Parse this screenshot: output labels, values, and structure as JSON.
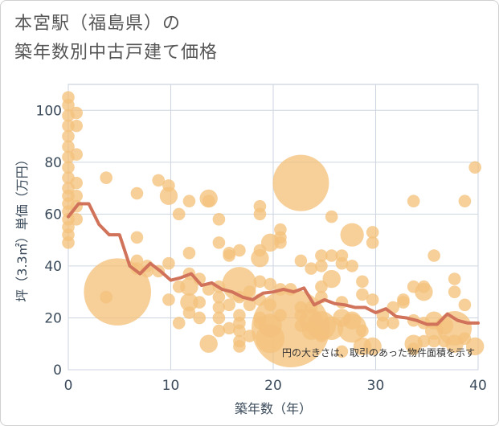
{
  "title_line1": "本宮駅（福島県）の",
  "title_line2": "築年数別中古戸建て価格",
  "chart_data": {
    "type": "scatter",
    "title": "本宮駅（福島県）の築年数別中古戸建て価格",
    "xlabel": "築年数（年）",
    "ylabel": "坪（3.3㎡）単価（万円）",
    "xlim": [
      0,
      40
    ],
    "ylim": [
      0,
      110
    ],
    "xticks": [
      "0",
      "10",
      "20",
      "30",
      "40"
    ],
    "yticks": [
      "0",
      "20",
      "40",
      "60",
      "80",
      "100"
    ],
    "grid": true,
    "note": "円の大きさは、取引のあった物件面積を示す",
    "colors": {
      "bubble": "#f3c27c",
      "line": "#d0735a",
      "grid": "#cdd6e0"
    },
    "bubbles": [
      {
        "x": 0,
        "y": 105,
        "s": 2
      },
      {
        "x": 0,
        "y": 102,
        "s": 2
      },
      {
        "x": 0,
        "y": 98,
        "s": 2
      },
      {
        "x": 0,
        "y": 94,
        "s": 2
      },
      {
        "x": 0,
        "y": 90,
        "s": 2
      },
      {
        "x": 0,
        "y": 86,
        "s": 2
      },
      {
        "x": 0,
        "y": 82,
        "s": 2
      },
      {
        "x": 0,
        "y": 78,
        "s": 2
      },
      {
        "x": 0,
        "y": 74,
        "s": 2
      },
      {
        "x": 0,
        "y": 70,
        "s": 2
      },
      {
        "x": 0,
        "y": 67,
        "s": 2
      },
      {
        "x": 0,
        "y": 64,
        "s": 2
      },
      {
        "x": 0,
        "y": 61,
        "s": 2
      },
      {
        "x": 0,
        "y": 58,
        "s": 2
      },
      {
        "x": 0,
        "y": 55,
        "s": 2
      },
      {
        "x": 0,
        "y": 52,
        "s": 2
      },
      {
        "x": 0,
        "y": 49,
        "s": 2
      },
      {
        "x": 0.8,
        "y": 99,
        "s": 2
      },
      {
        "x": 0.8,
        "y": 94,
        "s": 2
      },
      {
        "x": 0.8,
        "y": 83,
        "s": 2
      },
      {
        "x": 0.8,
        "y": 72,
        "s": 2
      },
      {
        "x": 0.8,
        "y": 67,
        "s": 2
      },
      {
        "x": 0.8,
        "y": 63,
        "s": 2
      },
      {
        "x": 0.8,
        "y": 58,
        "s": 2
      },
      {
        "x": 3.7,
        "y": 74,
        "s": 2
      },
      {
        "x": 3.7,
        "y": 28,
        "s": 2
      },
      {
        "x": 4.8,
        "y": 30,
        "s": 12
      },
      {
        "x": 6.7,
        "y": 68,
        "s": 2
      },
      {
        "x": 6.7,
        "y": 51,
        "s": 2
      },
      {
        "x": 6.7,
        "y": 42,
        "s": 2
      },
      {
        "x": 6.7,
        "y": 39,
        "s": 2
      },
      {
        "x": 7.7,
        "y": 40,
        "s": 2
      },
      {
        "x": 7.7,
        "y": 38,
        "s": 2
      },
      {
        "x": 8.8,
        "y": 73,
        "s": 2
      },
      {
        "x": 8.8,
        "y": 38,
        "s": 2
      },
      {
        "x": 9.8,
        "y": 71,
        "s": 2
      },
      {
        "x": 9.8,
        "y": 67,
        "s": 3
      },
      {
        "x": 9.8,
        "y": 41,
        "s": 2
      },
      {
        "x": 9.8,
        "y": 27,
        "s": 2
      },
      {
        "x": 10.8,
        "y": 60,
        "s": 2
      },
      {
        "x": 10.8,
        "y": 32,
        "s": 2
      },
      {
        "x": 10.8,
        "y": 18,
        "s": 2
      },
      {
        "x": 11.8,
        "y": 65,
        "s": 2
      },
      {
        "x": 11.8,
        "y": 45,
        "s": 2
      },
      {
        "x": 11.8,
        "y": 37,
        "s": 2
      },
      {
        "x": 11.8,
        "y": 32,
        "s": 3
      },
      {
        "x": 11.8,
        "y": 26,
        "s": 3
      },
      {
        "x": 11.8,
        "y": 22,
        "s": 2
      },
      {
        "x": 12.8,
        "y": 35,
        "s": 2
      },
      {
        "x": 12.8,
        "y": 26,
        "s": 2
      },
      {
        "x": 12.8,
        "y": 20,
        "s": 2
      },
      {
        "x": 13.7,
        "y": 66,
        "s": 3
      },
      {
        "x": 13.7,
        "y": 65,
        "s": 2
      },
      {
        "x": 13.7,
        "y": 31,
        "s": 2
      },
      {
        "x": 13.7,
        "y": 10,
        "s": 3
      },
      {
        "x": 14.7,
        "y": 58,
        "s": 2
      },
      {
        "x": 14.7,
        "y": 49,
        "s": 2
      },
      {
        "x": 14.7,
        "y": 32,
        "s": 2
      },
      {
        "x": 14.7,
        "y": 28,
        "s": 2
      },
      {
        "x": 14.7,
        "y": 24,
        "s": 2
      },
      {
        "x": 14.7,
        "y": 20,
        "s": 2
      },
      {
        "x": 14.7,
        "y": 15,
        "s": 2
      },
      {
        "x": 15.7,
        "y": 45,
        "s": 2
      },
      {
        "x": 15.7,
        "y": 44,
        "s": 2
      },
      {
        "x": 15.7,
        "y": 25,
        "s": 2
      },
      {
        "x": 15.7,
        "y": 16,
        "s": 2
      },
      {
        "x": 16.7,
        "y": 46,
        "s": 2
      },
      {
        "x": 16.7,
        "y": 33,
        "s": 6
      },
      {
        "x": 16.7,
        "y": 28,
        "s": 2
      },
      {
        "x": 16.7,
        "y": 21,
        "s": 2
      },
      {
        "x": 16.7,
        "y": 18,
        "s": 2
      },
      {
        "x": 16.7,
        "y": 15,
        "s": 2
      },
      {
        "x": 16.7,
        "y": 11,
        "s": 2
      },
      {
        "x": 16.7,
        "y": 9,
        "s": 2
      },
      {
        "x": 17.7,
        "y": 30,
        "s": 2
      },
      {
        "x": 17.7,
        "y": 25,
        "s": 2
      },
      {
        "x": 17.7,
        "y": 13,
        "s": 2
      },
      {
        "x": 18.7,
        "y": 63,
        "s": 2
      },
      {
        "x": 18.7,
        "y": 60,
        "s": 2
      },
      {
        "x": 18.7,
        "y": 46,
        "s": 2
      },
      {
        "x": 18.7,
        "y": 43,
        "s": 3
      },
      {
        "x": 18.7,
        "y": 34,
        "s": 2
      },
      {
        "x": 18.7,
        "y": 27,
        "s": 2
      },
      {
        "x": 18.7,
        "y": 20,
        "s": 2
      },
      {
        "x": 18.7,
        "y": 18,
        "s": 2
      },
      {
        "x": 19.7,
        "y": 49,
        "s": 3
      },
      {
        "x": 19.7,
        "y": 33,
        "s": 2
      },
      {
        "x": 19.7,
        "y": 25,
        "s": 2
      },
      {
        "x": 19.7,
        "y": 17,
        "s": 4
      },
      {
        "x": 19.7,
        "y": 12,
        "s": 5
      },
      {
        "x": 20.7,
        "y": 54,
        "s": 2
      },
      {
        "x": 20.7,
        "y": 51,
        "s": 2
      },
      {
        "x": 20.7,
        "y": 49,
        "s": 2
      },
      {
        "x": 20.7,
        "y": 31,
        "s": 2
      },
      {
        "x": 20.7,
        "y": 21,
        "s": 2
      },
      {
        "x": 21.7,
        "y": 31,
        "s": 2
      },
      {
        "x": 21.7,
        "y": 16,
        "s": 14
      },
      {
        "x": 22.7,
        "y": 72,
        "s": 10
      },
      {
        "x": 22.7,
        "y": 42,
        "s": 2
      },
      {
        "x": 22.7,
        "y": 24,
        "s": 2
      },
      {
        "x": 22.7,
        "y": 21,
        "s": 2
      },
      {
        "x": 22.7,
        "y": 17,
        "s": 2
      },
      {
        "x": 23.7,
        "y": 39,
        "s": 2
      },
      {
        "x": 23.7,
        "y": 24,
        "s": 2
      },
      {
        "x": 23.7,
        "y": 19,
        "s": 4
      },
      {
        "x": 23.7,
        "y": 15,
        "s": 3
      },
      {
        "x": 24.7,
        "y": 44,
        "s": 2
      },
      {
        "x": 24.7,
        "y": 40,
        "s": 2
      },
      {
        "x": 24.7,
        "y": 32,
        "s": 2
      },
      {
        "x": 24.7,
        "y": 28,
        "s": 2
      },
      {
        "x": 24.7,
        "y": 17,
        "s": 5
      },
      {
        "x": 24.7,
        "y": 13,
        "s": 2
      },
      {
        "x": 25.7,
        "y": 59,
        "s": 2
      },
      {
        "x": 25.7,
        "y": 44,
        "s": 2
      },
      {
        "x": 25.7,
        "y": 35,
        "s": 3
      },
      {
        "x": 25.7,
        "y": 16,
        "s": 4
      },
      {
        "x": 26.7,
        "y": 44,
        "s": 2
      },
      {
        "x": 26.7,
        "y": 41,
        "s": 2
      },
      {
        "x": 26.7,
        "y": 26,
        "s": 2
      },
      {
        "x": 26.7,
        "y": 20,
        "s": 3
      },
      {
        "x": 26.7,
        "y": 7,
        "s": 2
      },
      {
        "x": 27.7,
        "y": 52,
        "s": 4
      },
      {
        "x": 27.7,
        "y": 40,
        "s": 2
      },
      {
        "x": 27.7,
        "y": 19,
        "s": 3
      },
      {
        "x": 27.7,
        "y": 16,
        "s": 5
      },
      {
        "x": 28.7,
        "y": 34,
        "s": 2
      },
      {
        "x": 28.7,
        "y": 29,
        "s": 2
      },
      {
        "x": 28.7,
        "y": 15,
        "s": 2
      },
      {
        "x": 28.7,
        "y": 9,
        "s": 3
      },
      {
        "x": 29.7,
        "y": 53,
        "s": 2
      },
      {
        "x": 29.7,
        "y": 49,
        "s": 2
      },
      {
        "x": 29.7,
        "y": 27,
        "s": 2
      },
      {
        "x": 29.7,
        "y": 9,
        "s": 3
      },
      {
        "x": 30.7,
        "y": 21,
        "s": 2
      },
      {
        "x": 30.7,
        "y": 18,
        "s": 2
      },
      {
        "x": 31.7,
        "y": 24,
        "s": 2
      },
      {
        "x": 31.7,
        "y": 18,
        "s": 2
      },
      {
        "x": 32.7,
        "y": 27,
        "s": 2
      },
      {
        "x": 32.7,
        "y": 26,
        "s": 2
      },
      {
        "x": 33.7,
        "y": 65,
        "s": 2
      },
      {
        "x": 33.7,
        "y": 32,
        "s": 2
      },
      {
        "x": 33.7,
        "y": 19,
        "s": 2
      },
      {
        "x": 33.7,
        "y": 10,
        "s": 3
      },
      {
        "x": 33.7,
        "y": 8,
        "s": 2
      },
      {
        "x": 34.7,
        "y": 32,
        "s": 2
      },
      {
        "x": 34.7,
        "y": 30,
        "s": 3
      },
      {
        "x": 34.7,
        "y": 18,
        "s": 2
      },
      {
        "x": 34.7,
        "y": 11,
        "s": 2
      },
      {
        "x": 35.7,
        "y": 44,
        "s": 2
      },
      {
        "x": 35.7,
        "y": 19,
        "s": 3
      },
      {
        "x": 35.7,
        "y": 15,
        "s": 3
      },
      {
        "x": 35.7,
        "y": 11,
        "s": 2
      },
      {
        "x": 36.7,
        "y": 17,
        "s": 3
      },
      {
        "x": 36.7,
        "y": 11,
        "s": 2
      },
      {
        "x": 37.7,
        "y": 35,
        "s": 2
      },
      {
        "x": 37.7,
        "y": 30,
        "s": 2
      },
      {
        "x": 37.7,
        "y": 16,
        "s": 6
      },
      {
        "x": 37.7,
        "y": 10,
        "s": 3
      },
      {
        "x": 38.7,
        "y": 65,
        "s": 2
      },
      {
        "x": 38.7,
        "y": 25,
        "s": 2
      },
      {
        "x": 38.7,
        "y": 12,
        "s": 2
      },
      {
        "x": 39.7,
        "y": 78,
        "s": 2
      },
      {
        "x": 39.7,
        "y": 9,
        "s": 3
      }
    ],
    "line": {
      "x": [
        0,
        1,
        2,
        3,
        4,
        5,
        6,
        7,
        8,
        9,
        10,
        11,
        12,
        13,
        14,
        15,
        16,
        17,
        18,
        19,
        20,
        21,
        22,
        23,
        24,
        25,
        26,
        27,
        28,
        29,
        30,
        31,
        32,
        33,
        34,
        35,
        36,
        37,
        38,
        39,
        40
      ],
      "y": [
        59,
        64,
        64,
        56,
        52,
        52,
        40,
        37,
        41,
        38,
        34.5,
        35.5,
        37,
        32.5,
        33.5,
        31,
        30,
        28,
        27,
        29.5,
        30,
        31,
        30,
        31.5,
        25,
        27,
        25.5,
        25,
        24,
        24,
        22,
        23.5,
        20.5,
        20,
        19,
        17.5,
        17.5,
        21.5,
        19,
        18,
        18
      ]
    }
  }
}
